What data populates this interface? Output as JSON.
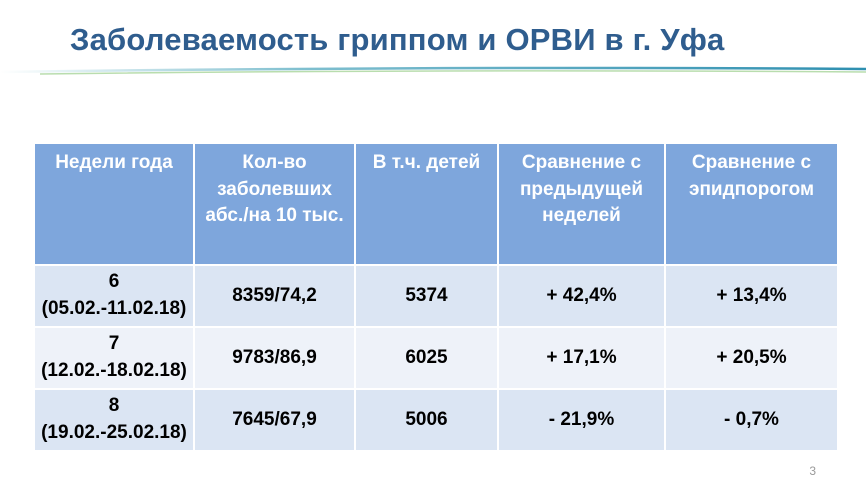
{
  "slide": {
    "title": "Заболеваемость гриппом и ОРВИ в г. Уфа",
    "page_number": "3"
  },
  "table": {
    "headers": [
      "Недели года",
      "Кол-во заболевших абс./на 10 тыс.",
      "В т.ч. детей",
      "Сравнение с предыдущей неделей",
      "Сравнение с эпидпорогом"
    ],
    "rows": [
      {
        "week": "6 (05.02.-11.02.18)",
        "cases": "8359/74,2",
        "children": "5374",
        "vs_prev": "+ 42,4%",
        "vs_threshold": "+ 13,4%"
      },
      {
        "week": "7 (12.02.-18.02.18)",
        "cases": "9783/86,9",
        "children": "6025",
        "vs_prev": "+ 17,1%",
        "vs_threshold": "+ 20,5%"
      },
      {
        "week": "8 (19.02.-25.02.18)",
        "cases": "7645/67,9",
        "children": "5006",
        "vs_prev": "- 21,9%",
        "vs_threshold": "- 0,7%"
      }
    ]
  },
  "colors": {
    "title": "#2f5d8e",
    "header_bg": "#7ea6dc",
    "row_dark": "#dbe5f3",
    "row_light": "#eef2f9"
  }
}
